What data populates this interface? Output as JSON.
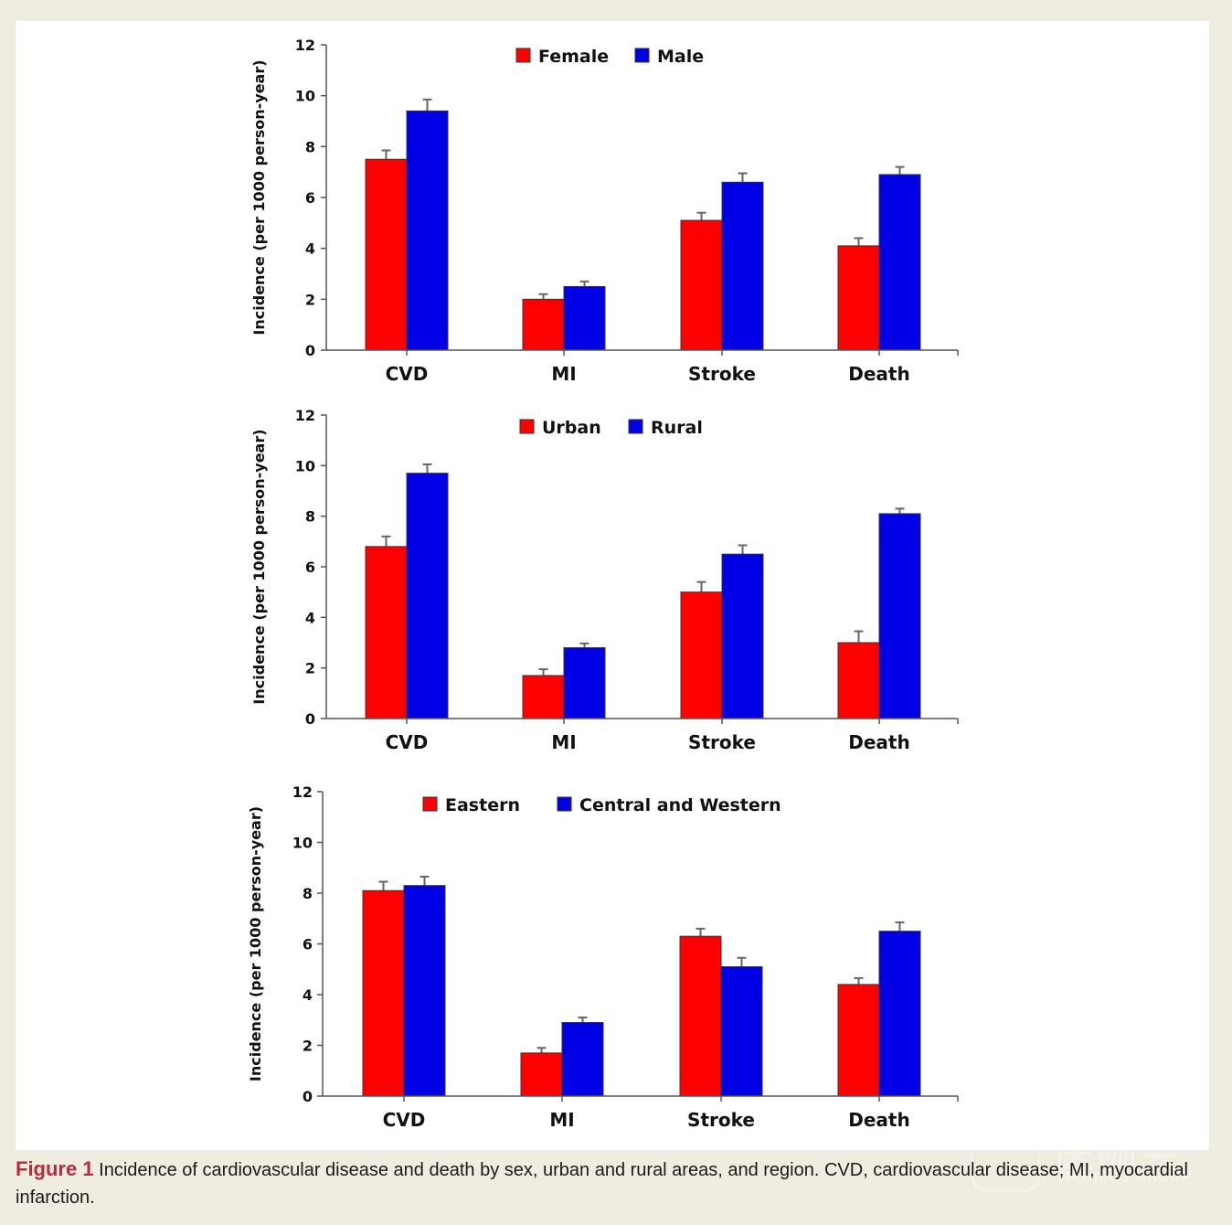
{
  "figure": {
    "label": "Figure 1",
    "caption": " Incidence of cardiovascular disease and death by sex, urban and rural areas, and region. CVD, cardiovascular disease; MI, myocardial infarction."
  },
  "watermark": {
    "chinese": "医咖会",
    "english": "MEDIECO GROUP"
  },
  "colors": {
    "series1": "#ff0000",
    "series2": "#0000e6",
    "error_bar": "#666666",
    "axis": "#555555"
  },
  "chart_data": [
    {
      "type": "bar",
      "title": "",
      "xlabel": "",
      "ylabel": "Incidence (per 1000 person-year)",
      "ylim": [
        0,
        12
      ],
      "yticks": [
        "0",
        "2",
        "4",
        "6",
        "8",
        "10",
        "12"
      ],
      "categories": [
        "CVD",
        "MI",
        "Stroke",
        "Death"
      ],
      "legend_position": "top-center",
      "grid": false,
      "series": [
        {
          "name": "Female",
          "color": "#ff0000",
          "values": [
            7.5,
            2.0,
            5.1,
            4.1
          ],
          "error_upper": [
            7.85,
            2.2,
            5.4,
            4.4
          ]
        },
        {
          "name": "Male",
          "color": "#0000e6",
          "values": [
            9.4,
            2.5,
            6.6,
            6.9
          ],
          "error_upper": [
            9.85,
            2.7,
            6.95,
            7.2
          ]
        }
      ]
    },
    {
      "type": "bar",
      "title": "",
      "xlabel": "",
      "ylabel": "Incidence (per 1000 person-year)",
      "ylim": [
        0,
        12
      ],
      "yticks": [
        "0",
        "2",
        "4",
        "6",
        "8",
        "10",
        "12"
      ],
      "categories": [
        "CVD",
        "MI",
        "Stroke",
        "Death"
      ],
      "legend_position": "top-center",
      "grid": false,
      "series": [
        {
          "name": "Urban",
          "color": "#ff0000",
          "values": [
            6.8,
            1.7,
            5.0,
            3.0
          ],
          "error_upper": [
            7.2,
            1.95,
            5.4,
            3.45
          ]
        },
        {
          "name": "Rural",
          "color": "#0000e6",
          "values": [
            9.7,
            2.8,
            6.5,
            8.1
          ],
          "error_upper": [
            10.05,
            2.97,
            6.85,
            8.3
          ]
        }
      ]
    },
    {
      "type": "bar",
      "title": "",
      "xlabel": "",
      "ylabel": "Incidence (per 1000 person-year)",
      "ylim": [
        0,
        12
      ],
      "yticks": [
        "0",
        "2",
        "4",
        "6",
        "8",
        "10",
        "12"
      ],
      "categories": [
        "CVD",
        "MI",
        "Stroke",
        "Death"
      ],
      "legend_position": "top-center",
      "grid": false,
      "series": [
        {
          "name": "Eastern",
          "color": "#ff0000",
          "values": [
            8.1,
            1.7,
            6.3,
            4.4
          ],
          "error_upper": [
            8.45,
            1.9,
            6.6,
            4.65
          ]
        },
        {
          "name": "Central and Western",
          "color": "#0000e6",
          "values": [
            8.3,
            2.9,
            5.1,
            6.5
          ],
          "error_upper": [
            8.65,
            3.1,
            5.45,
            6.85
          ]
        }
      ]
    }
  ]
}
